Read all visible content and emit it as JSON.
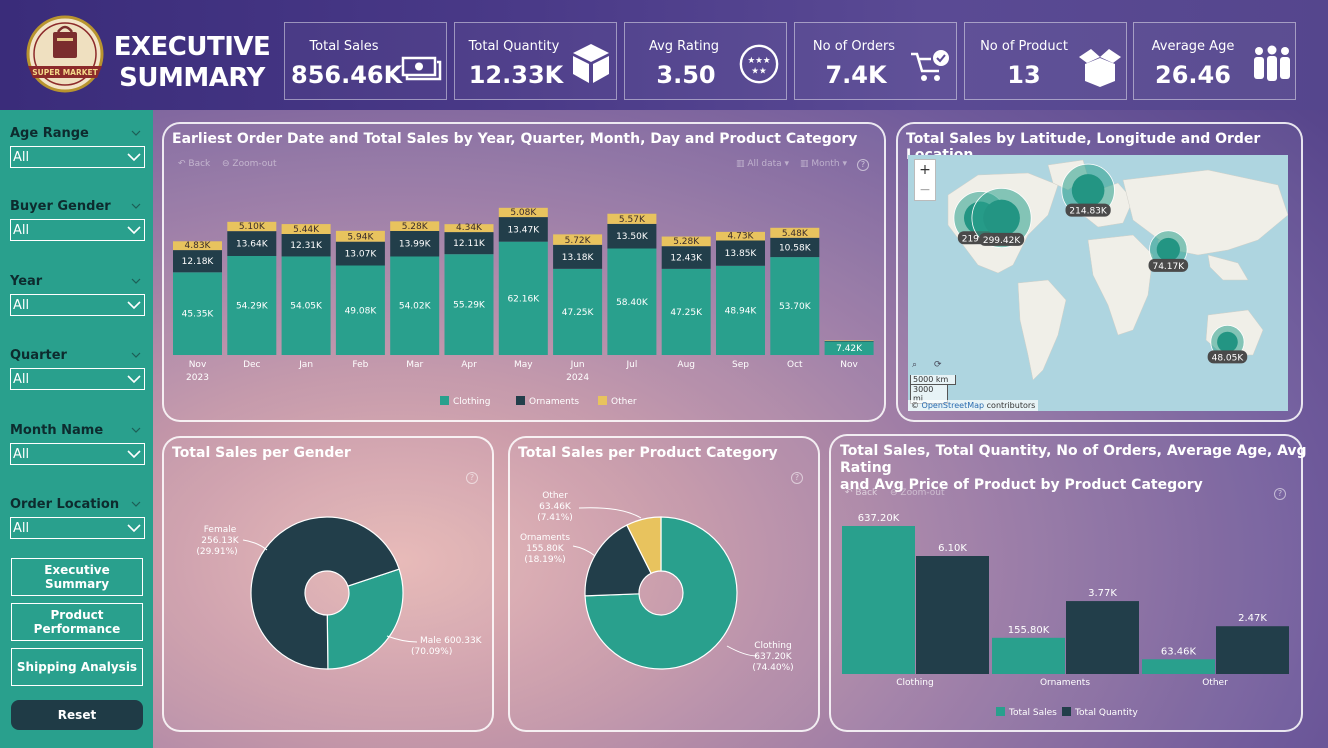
{
  "header": {
    "logo_text": "SUPER MARKET",
    "title_line1": "EXECUTIVE",
    "title_line2": "SUMMARY"
  },
  "kpis": [
    {
      "label": "Total Sales",
      "value": "856.46K",
      "icon": "money-icon"
    },
    {
      "label": "Total Quantity",
      "value": "12.33K",
      "icon": "box-icon"
    },
    {
      "label": "Avg Rating",
      "value": "3.50",
      "icon": "stars-icon"
    },
    {
      "label": "No of Orders",
      "value": "7.4K",
      "icon": "cart-icon"
    },
    {
      "label": "No of Product",
      "value": "13",
      "icon": "open-box-icon"
    },
    {
      "label": "Average Age",
      "value": "26.46",
      "icon": "people-icon"
    }
  ],
  "slicers": [
    {
      "label": "Age Range",
      "value": "All"
    },
    {
      "label": "Buyer Gender",
      "value": "All"
    },
    {
      "label": "Year",
      "value": "All"
    },
    {
      "label": "Quarter",
      "value": "All"
    },
    {
      "label": "Month Name",
      "value": "All"
    },
    {
      "label": "Order Location",
      "value": "All"
    }
  ],
  "nav": {
    "executive": "Executive Summary",
    "product": "Product Performance",
    "shipping": "Shipping Analysis",
    "reset": "Reset"
  },
  "colors": {
    "clothing": "#29a08d",
    "ornaments": "#223e4a",
    "other": "#e8c35e",
    "sidebar": "#29a08d"
  },
  "panels": {
    "stacked": {
      "title": "Earliest Order Date and Total Sales by Year, Quarter, Month, Day and Product Category",
      "back": "Back",
      "zoom_out": "Zoom-out",
      "all_data": "All data",
      "month": "Month"
    },
    "map": {
      "title": "Total Sales by Latitude, Longitude and Order Location",
      "scale_km": "5000 km",
      "scale_mi": "3000 mi",
      "attribution_prefix": "©",
      "attribution_link": "OpenStreetMap",
      "attribution_suffix": "contributors",
      "zoom_in": "+",
      "zoom_out": "−"
    },
    "gender": {
      "title": "Total Sales per Gender"
    },
    "category": {
      "title": "Total Sales per Product Category"
    },
    "multi": {
      "title_line1": "Total Sales, Total Quantity, No of Orders, Average Age, Avg Rating",
      "title_line2": "and Avg Price of Product by Product Category",
      "back": "Back",
      "zoom_out": "Zoom-out"
    }
  },
  "chart_data": [
    {
      "type": "bar",
      "stacked": true,
      "categories": [
        "Nov",
        "Dec",
        "Jan",
        "Feb",
        "Mar",
        "Apr",
        "May",
        "Jun",
        "Jul",
        "Aug",
        "Sep",
        "Oct",
        "Nov"
      ],
      "year_labels": [
        {
          "label": "2023",
          "index": 0
        },
        {
          "label": "2024",
          "index": 7
        }
      ],
      "series": [
        {
          "name": "Clothing",
          "values": [
            45.35,
            54.29,
            54.05,
            49.08,
            54.02,
            55.29,
            62.16,
            47.25,
            58.4,
            47.25,
            48.94,
            53.7,
            7.42
          ],
          "labels": [
            "45.35K",
            "54.29K",
            "54.05K",
            "49.08K",
            "54.02K",
            "55.29K",
            "62.16K",
            "47.25K",
            "58.40K",
            "47.25K",
            "48.94K",
            "53.70K",
            "7.42K"
          ]
        },
        {
          "name": "Ornaments",
          "values": [
            12.18,
            13.64,
            12.31,
            13.07,
            13.99,
            12.11,
            13.47,
            13.18,
            13.5,
            12.43,
            13.85,
            10.58,
            0.3
          ],
          "labels": [
            "12.18K",
            "13.64K",
            "12.31K",
            "13.07K",
            "13.99K",
            "12.11K",
            "13.47K",
            "13.18K",
            "13.50K",
            "12.43K",
            "13.85K",
            "10.58K",
            ""
          ]
        },
        {
          "name": "Other",
          "values": [
            4.83,
            5.1,
            5.44,
            5.94,
            5.28,
            4.34,
            5.08,
            5.72,
            5.57,
            5.28,
            4.73,
            5.48,
            0.3
          ],
          "labels": [
            "4.83K",
            "5.10K",
            "5.44K",
            "5.94K",
            "5.28K",
            "4.34K",
            "5.08K",
            "5.72K",
            "5.57K",
            "5.28K",
            "4.73K",
            "5.48K",
            ""
          ]
        }
      ],
      "ylim": [
        0,
        85
      ]
    },
    {
      "type": "scatter",
      "subtype": "map-bubbles",
      "points": [
        {
          "label": "219.99K",
          "value": 219.99,
          "lon": -100,
          "lat": 38
        },
        {
          "label": "299.42K",
          "value": 299.42,
          "lon": -80,
          "lat": 38
        },
        {
          "label": "214.83K",
          "value": 214.83,
          "lon": 2,
          "lat": 52
        },
        {
          "label": "74.17K",
          "value": 74.17,
          "lon": 78,
          "lat": 22
        },
        {
          "label": "48.05K",
          "value": 48.05,
          "lon": 134,
          "lat": -25
        }
      ]
    },
    {
      "type": "pie",
      "subtype": "donut",
      "slices": [
        {
          "name": "Female",
          "value": 256.13,
          "label": "256.13K",
          "pct": "(29.91%)"
        },
        {
          "name": "Male",
          "value": 600.33,
          "label": "600.33K",
          "pct": "(70.09%)"
        }
      ]
    },
    {
      "type": "pie",
      "subtype": "donut",
      "slices": [
        {
          "name": "Clothing",
          "value": 637.2,
          "label": "637.20K",
          "pct": "(74.40%)"
        },
        {
          "name": "Ornaments",
          "value": 155.8,
          "label": "155.80K",
          "pct": "(18.19%)"
        },
        {
          "name": "Other",
          "value": 63.46,
          "label": "63.46K",
          "pct": "(7.41%)"
        }
      ]
    },
    {
      "type": "bar",
      "categories": [
        "Clothing",
        "Ornaments",
        "Other"
      ],
      "series": [
        {
          "name": "Total Sales",
          "values": [
            637.2,
            155.8,
            63.46
          ],
          "labels": [
            "637.20K",
            "155.80K",
            "63.46K"
          ]
        },
        {
          "name": "Total Quantity",
          "values": [
            6.1,
            3.77,
            2.47
          ],
          "labels": [
            "6.10K",
            "3.77K",
            "2.47K"
          ]
        }
      ]
    }
  ]
}
